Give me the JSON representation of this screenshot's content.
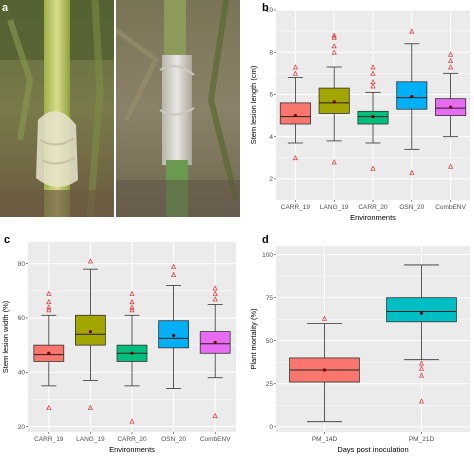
{
  "panels": {
    "a": "a",
    "b": "b",
    "c": "c",
    "d": "d"
  },
  "colors": {
    "carr19": "#f8766d",
    "lang19": "#a3a500",
    "carr20": "#00bf7d",
    "osn20": "#00b0f6",
    "combenv": "#e76bf3",
    "pm14d": "#f8766d",
    "pm21d": "#00bfc4",
    "mean": "#cc0000",
    "outlier": "#e03030"
  },
  "chart_data": [
    {
      "id": "b",
      "type": "box",
      "ylabel": "Stem lesion length (cm)",
      "xlabel": "Environments",
      "ylim": [
        1,
        10
      ],
      "yticks": [
        2,
        4,
        6,
        8,
        10
      ],
      "categories": [
        "CARR_19",
        "LANG_19",
        "CARR_20",
        "OSN_20",
        "CombENV"
      ],
      "boxes": [
        {
          "min": 3.7,
          "q1": 4.6,
          "median": 4.95,
          "q3": 5.6,
          "max": 6.8,
          "mean": 5.0,
          "outliers": [
            7.0,
            7.3,
            3.0
          ]
        },
        {
          "min": 3.8,
          "q1": 5.1,
          "median": 5.6,
          "q3": 6.3,
          "max": 7.3,
          "mean": 5.65,
          "outliers": [
            8.0,
            8.3,
            8.7,
            8.8,
            2.8
          ]
        },
        {
          "min": 3.7,
          "q1": 4.6,
          "median": 4.95,
          "q3": 5.2,
          "max": 6.1,
          "mean": 4.95,
          "outliers": [
            6.4,
            6.6,
            7.0,
            7.3,
            2.5
          ]
        },
        {
          "min": 3.4,
          "q1": 5.3,
          "median": 5.85,
          "q3": 6.6,
          "max": 8.4,
          "mean": 5.9,
          "outliers": [
            9.0,
            2.3
          ]
        },
        {
          "min": 4.0,
          "q1": 5.0,
          "median": 5.35,
          "q3": 5.8,
          "max": 7.0,
          "mean": 5.4,
          "outliers": [
            7.3,
            7.6,
            7.9,
            2.6
          ]
        }
      ]
    },
    {
      "id": "c",
      "type": "box",
      "ylabel": "Stem lesion width (%)",
      "xlabel": "Environments",
      "ylim": [
        18,
        88
      ],
      "yticks": [
        20,
        40,
        60,
        80
      ],
      "categories": [
        "CARR_19",
        "LANG_19",
        "CARR_20",
        "OSN_20",
        "CombENV"
      ],
      "boxes": [
        {
          "min": 35,
          "q1": 44,
          "median": 46.5,
          "q3": 50,
          "max": 61,
          "mean": 47,
          "outliers": [
            63,
            64,
            66,
            69,
            27
          ]
        },
        {
          "min": 37,
          "q1": 50,
          "median": 54,
          "q3": 61,
          "max": 78,
          "mean": 55,
          "outliers": [
            81,
            27
          ]
        },
        {
          "min": 35,
          "q1": 44,
          "median": 47,
          "q3": 50,
          "max": 61,
          "mean": 47,
          "outliers": [
            63,
            64,
            66,
            69,
            22
          ]
        },
        {
          "min": 34,
          "q1": 49,
          "median": 52.5,
          "q3": 59,
          "max": 72,
          "mean": 53.5,
          "outliers": [
            76,
            79
          ]
        },
        {
          "min": 38,
          "q1": 47,
          "median": 50.5,
          "q3": 55,
          "max": 65,
          "mean": 51,
          "outliers": [
            67,
            69,
            71,
            24
          ]
        }
      ]
    },
    {
      "id": "d",
      "type": "box",
      "ylabel": "Plant mortality (%)",
      "xlabel": "Days post inoculation",
      "ylim": [
        -3,
        105
      ],
      "yticks": [
        0,
        25,
        50,
        75,
        100
      ],
      "categories": [
        "PM_14D",
        "PM_21D"
      ],
      "boxes": [
        {
          "min": 3,
          "q1": 26,
          "median": 33,
          "q3": 40,
          "max": 60,
          "mean": 33,
          "outliers": [
            63
          ]
        },
        {
          "min": 39,
          "q1": 61,
          "median": 67,
          "q3": 75,
          "max": 94,
          "mean": 66,
          "outliers": [
            37,
            34,
            30,
            15
          ]
        }
      ]
    }
  ]
}
